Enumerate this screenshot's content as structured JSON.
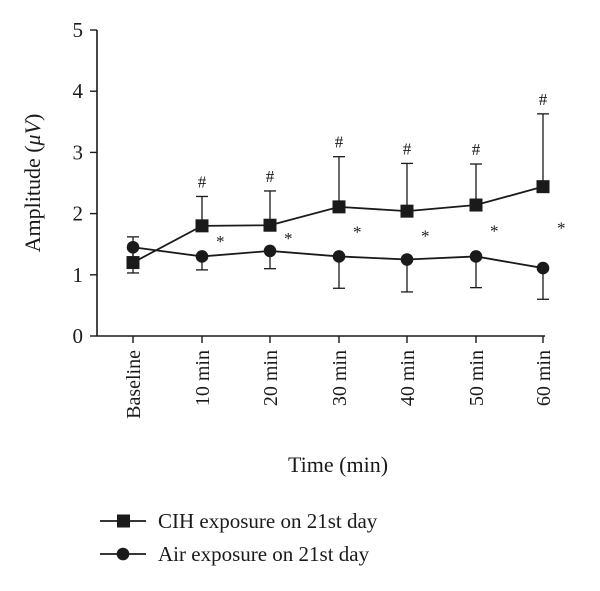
{
  "chart_data": {
    "type": "line",
    "title": "",
    "xlabel": "Time (min)",
    "ylabel_text": "Amplitude (",
    "ylabel_unit": "μV",
    "ylabel_close": ")",
    "ylim": [
      0,
      5
    ],
    "yticks": [
      "0",
      "1",
      "2",
      "3",
      "4",
      "5"
    ],
    "categories": [
      "Baseline",
      "10 min",
      "20 min",
      "30 min",
      "40 min",
      "50 min",
      "60 min"
    ],
    "grid": false,
    "legend_position": "bottom",
    "series": [
      {
        "name": "CIH exposure on 21st day",
        "marker": "square",
        "values": [
          1.2,
          1.8,
          1.81,
          2.11,
          2.04,
          2.14,
          2.44
        ],
        "error_upper": [
          1.62,
          2.28,
          2.37,
          2.93,
          2.82,
          2.81,
          3.63
        ],
        "error_lower": null,
        "color": "#1a1a1a"
      },
      {
        "name": "Air exposure on 21st day",
        "marker": "circle",
        "values": [
          1.45,
          1.3,
          1.39,
          1.3,
          1.25,
          1.3,
          1.11
        ],
        "error_upper": null,
        "error_lower": [
          1.03,
          1.08,
          1.1,
          0.78,
          0.72,
          0.79,
          0.6
        ],
        "color": "#1a1a1a"
      }
    ],
    "annotations": {
      "hash_symbol": "#",
      "star_symbol": "*",
      "hash_at": [
        1,
        2,
        3,
        4,
        5,
        6
      ],
      "star_at": [
        1,
        2,
        3,
        4,
        5,
        6
      ]
    }
  }
}
